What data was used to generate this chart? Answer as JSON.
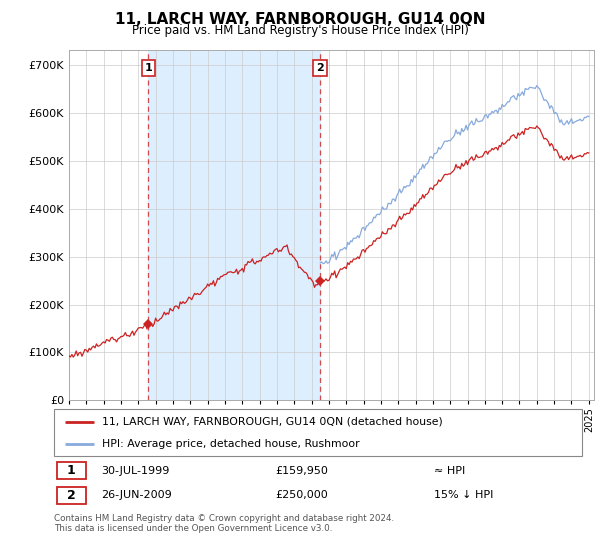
{
  "title": "11, LARCH WAY, FARNBOROUGH, GU14 0QN",
  "subtitle": "Price paid vs. HM Land Registry's House Price Index (HPI)",
  "legend_line1": "11, LARCH WAY, FARNBOROUGH, GU14 0QN (detached house)",
  "legend_line2": "HPI: Average price, detached house, Rushmoor",
  "annotation1_date": "30-JUL-1999",
  "annotation1_price": "£159,950",
  "annotation1_hpi": "≈ HPI",
  "annotation2_date": "26-JUN-2009",
  "annotation2_price": "£250,000",
  "annotation2_hpi": "15% ↓ HPI",
  "footer": "Contains HM Land Registry data © Crown copyright and database right 2024.\nThis data is licensed under the Open Government Licence v3.0.",
  "red_color": "#cc2222",
  "blue_color": "#88aadd",
  "shade_color": "#ddeeff",
  "grid_color": "#cccccc",
  "ylim": [
    0,
    730000
  ],
  "yticks": [
    0,
    100000,
    200000,
    300000,
    400000,
    500000,
    600000,
    700000
  ],
  "sale1_year": 1999.57,
  "sale1_price": 159950,
  "sale2_year": 2009.48,
  "sale2_price": 250000,
  "hpi_start_year": 2009.48,
  "xlim_start": 1995.0,
  "xlim_end": 2025.3
}
